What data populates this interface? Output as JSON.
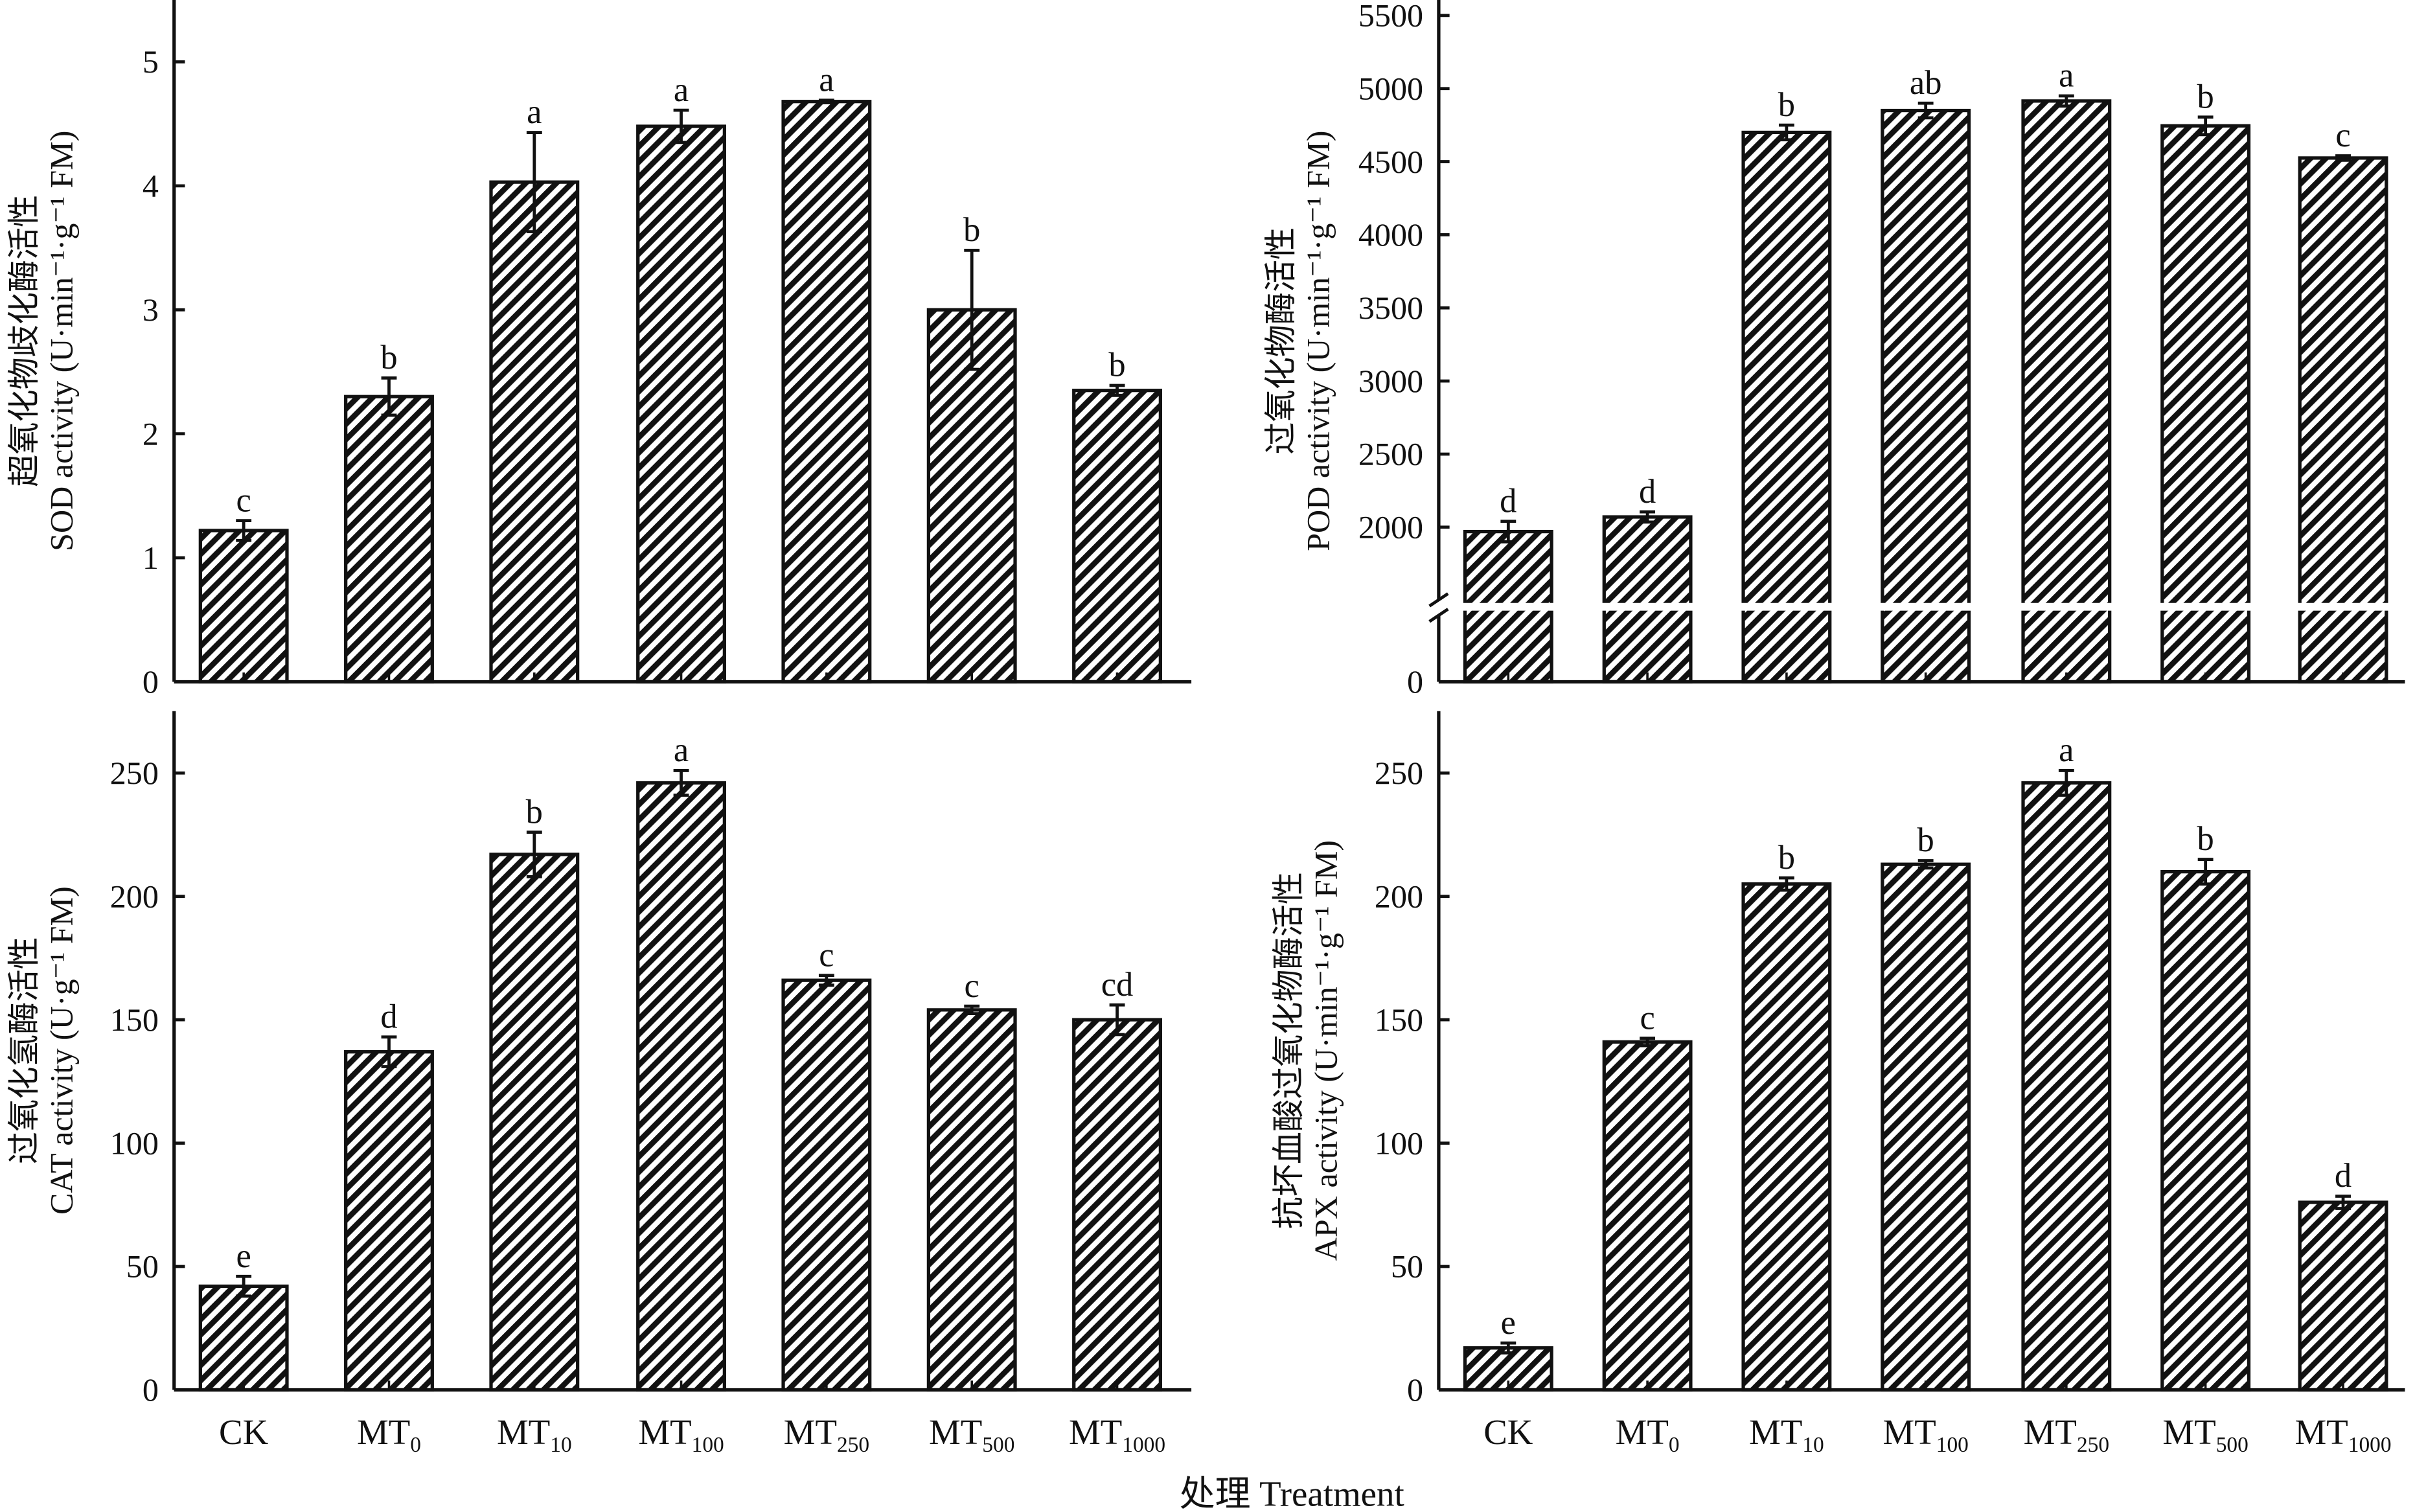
{
  "xlabel": "处理 Treatment",
  "categories": [
    {
      "base": "CK",
      "sub": ""
    },
    {
      "base": "MT",
      "sub": "0"
    },
    {
      "base": "MT",
      "sub": "10"
    },
    {
      "base": "MT",
      "sub": "100"
    },
    {
      "base": "MT",
      "sub": "250"
    },
    {
      "base": "MT",
      "sub": "500"
    },
    {
      "base": "MT",
      "sub": "1000"
    }
  ],
  "chart_data": [
    {
      "type": "bar",
      "ylabel_cn": "超氧化物歧化酶活性",
      "ylabel_en": "SOD activity (U·min⁻¹·g⁻¹ FM)",
      "ylim": [
        0,
        5.5
      ],
      "yticks": [
        0,
        1,
        2,
        3,
        4,
        5
      ],
      "axis_break": false,
      "values": [
        1.22,
        2.3,
        4.03,
        4.48,
        4.68,
        3.0,
        2.35
      ],
      "errors": [
        0.08,
        0.15,
        0.4,
        0.13,
        0.01,
        0.48,
        0.04
      ],
      "letters": [
        "c",
        "b",
        "a",
        "a",
        "a",
        "b",
        "b"
      ]
    },
    {
      "type": "bar",
      "ylabel_cn": "过氧化物酶活性",
      "ylabel_en": "POD activity (U·min⁻¹·g⁻¹ FM)",
      "ylim": [
        0,
        5500
      ],
      "yticks": [
        0,
        2000,
        2500,
        3000,
        3500,
        4000,
        4500,
        5000,
        5500
      ],
      "axis_break": true,
      "values": [
        1970,
        2070,
        4700,
        4850,
        4915,
        4745,
        4525
      ],
      "errors": [
        70,
        35,
        50,
        50,
        35,
        60,
        15
      ],
      "letters": [
        "d",
        "d",
        "b",
        "ab",
        "a",
        "b",
        "c"
      ]
    },
    {
      "type": "bar",
      "ylabel_cn": "过氧化氢酶活性",
      "ylabel_en": "CAT activity (U·g⁻¹ FM)",
      "ylim": [
        0,
        275
      ],
      "yticks": [
        0,
        50,
        100,
        150,
        200,
        250
      ],
      "axis_break": false,
      "values": [
        42,
        137,
        217,
        246,
        166,
        154,
        150
      ],
      "errors": [
        4,
        6,
        9,
        5,
        2,
        1.5,
        6
      ],
      "letters": [
        "e",
        "d",
        "b",
        "a",
        "c",
        "c",
        "cd"
      ]
    },
    {
      "type": "bar",
      "ylabel_cn": "抗坏血酸过氧化物酶活性",
      "ylabel_en": "APX activity (U·min⁻¹·g⁻¹ FM)",
      "ylim": [
        0,
        275
      ],
      "yticks": [
        0,
        50,
        100,
        150,
        200,
        250
      ],
      "axis_break": false,
      "values": [
        17,
        141,
        205,
        213,
        246,
        210,
        76
      ],
      "errors": [
        2,
        1.5,
        2.5,
        1.5,
        5,
        5,
        2.5
      ],
      "letters": [
        "e",
        "c",
        "b",
        "b",
        "a",
        "b",
        "d"
      ]
    }
  ]
}
